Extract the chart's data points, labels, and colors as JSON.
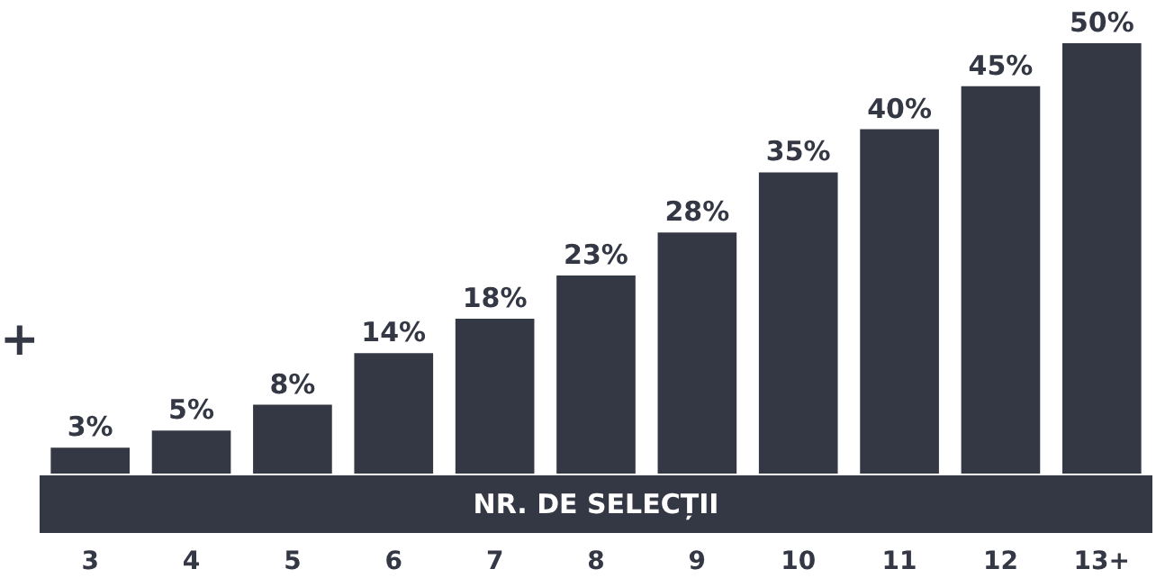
{
  "chart_data": {
    "type": "bar",
    "xlabel": "NR. DE SELECȚII",
    "categories": [
      "3",
      "4",
      "5",
      "6",
      "7",
      "8",
      "9",
      "10",
      "11",
      "12",
      "13+"
    ],
    "values": [
      3,
      5,
      8,
      14,
      18,
      23,
      28,
      35,
      40,
      45,
      50
    ],
    "value_labels": [
      "3%",
      "5%",
      "8%",
      "14%",
      "18%",
      "23%",
      "28%",
      "35%",
      "40%",
      "45%",
      "50%"
    ],
    "color": "#343744",
    "annotations": [
      "+"
    ]
  }
}
